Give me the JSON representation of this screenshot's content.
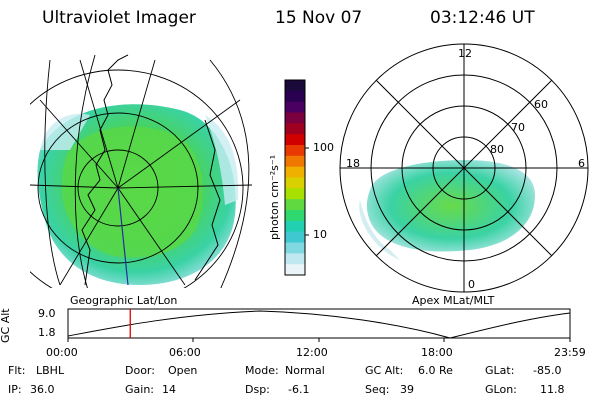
{
  "header": {
    "instrument": "Ultraviolet Imager",
    "date": "15 Nov 07",
    "time": "03:12:46 UT"
  },
  "colorbar": {
    "unit_label": "photon cm⁻²s⁻¹",
    "ticks": [
      "100",
      "10"
    ],
    "colors": [
      "#1a0a3a",
      "#2a0050",
      "#4a0060",
      "#7a0040",
      "#a00020",
      "#d00000",
      "#e83a00",
      "#f07800",
      "#f0b000",
      "#d8d000",
      "#a8e000",
      "#60d840",
      "#30d870",
      "#20d0b0",
      "#40c8d0",
      "#80d8e0",
      "#c0e8f0",
      "#e8f4f8"
    ]
  },
  "left_map": {
    "label": "Geographic Lat/Lon"
  },
  "right_map": {
    "label": "Apex  MLat/MLT",
    "clock_labels": {
      "top": "12",
      "left": "18",
      "right": "6",
      "bottom": "0"
    },
    "lat_labels": [
      "60",
      "70",
      "80"
    ]
  },
  "altitude_plot": {
    "ylabel": "GC Alt",
    "y_ticks": [
      "9.0",
      "1.8"
    ],
    "x_ticks": [
      "00:00",
      "06:00",
      "12:00",
      "18:00",
      "23:59"
    ],
    "current_time_fraction": 0.124
  },
  "status": {
    "flt_label": "Flt:",
    "flt_value": "LBHL",
    "door_label": "Door:",
    "door_value": "Open",
    "mode_label": "Mode:",
    "mode_value": "Normal",
    "gcalt_label": "GC Alt:",
    "gcalt_value": "6.0 Re",
    "glat_label": "GLat:",
    "glat_value": "-85.0",
    "ip_label": "IP:",
    "ip_value": "36.0",
    "gain_label": "Gain:",
    "gain_value": "14",
    "dsp_label": "Dsp:",
    "dsp_value": "-6.1",
    "seq_label": "Seq:",
    "seq_value": "39",
    "glon_label": "GLon:",
    "glon_value": "11.8"
  }
}
